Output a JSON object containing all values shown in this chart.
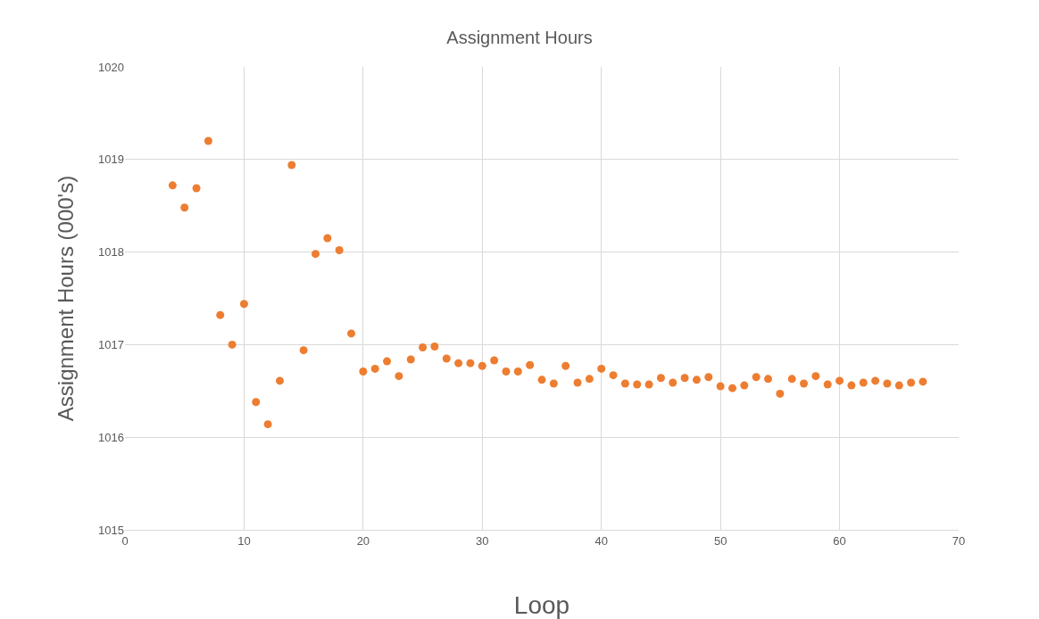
{
  "chart_data": {
    "type": "scatter",
    "title": "Assignment Hours",
    "xlabel": "Loop",
    "ylabel": "Assignment Hours (000's)",
    "x": [
      4,
      5,
      6,
      7,
      8,
      9,
      10,
      11,
      12,
      13,
      14,
      15,
      16,
      17,
      18,
      19,
      20,
      21,
      22,
      23,
      24,
      25,
      26,
      27,
      28,
      29,
      30,
      31,
      32,
      33,
      34,
      35,
      36,
      37,
      38,
      39,
      40,
      41,
      42,
      43,
      44,
      45,
      46,
      47,
      48,
      49,
      50,
      51,
      52,
      53,
      54,
      55,
      56,
      57,
      58,
      59,
      60,
      61,
      62,
      63,
      64,
      65,
      66,
      67
    ],
    "series": [
      {
        "color": "#ed7d31",
        "values": [
          1018.72,
          1018.48,
          1018.69,
          1019.2,
          1017.32,
          1017.0,
          1017.44,
          1016.38,
          1016.14,
          1016.61,
          1018.94,
          1016.94,
          1017.98,
          1018.15,
          1018.02,
          1017.12,
          1016.71,
          1016.74,
          1016.82,
          1016.66,
          1016.84,
          1016.97,
          1016.98,
          1016.85,
          1016.8,
          1016.8,
          1016.77,
          1016.83,
          1016.71,
          1016.71,
          1016.78,
          1016.62,
          1016.58,
          1016.77,
          1016.59,
          1016.63,
          1016.74,
          1016.67,
          1016.58,
          1016.57,
          1016.57,
          1016.64,
          1016.59,
          1016.64,
          1016.62,
          1016.65,
          1016.55,
          1016.53,
          1016.56,
          1016.65,
          1016.63,
          1016.47,
          1016.63,
          1016.58,
          1016.66,
          1016.57,
          1016.61,
          1016.56,
          1016.59,
          1016.61,
          1016.58,
          1016.56,
          1016.59,
          1016.6
        ]
      }
    ],
    "xlim": [
      0,
      70
    ],
    "xticks": [
      0,
      10,
      20,
      30,
      40,
      50,
      60,
      70
    ],
    "ylim": [
      1015,
      1020
    ],
    "yticks": [
      1015,
      1016,
      1017,
      1018,
      1019,
      1020
    ],
    "grid": true,
    "marker": "circle"
  }
}
